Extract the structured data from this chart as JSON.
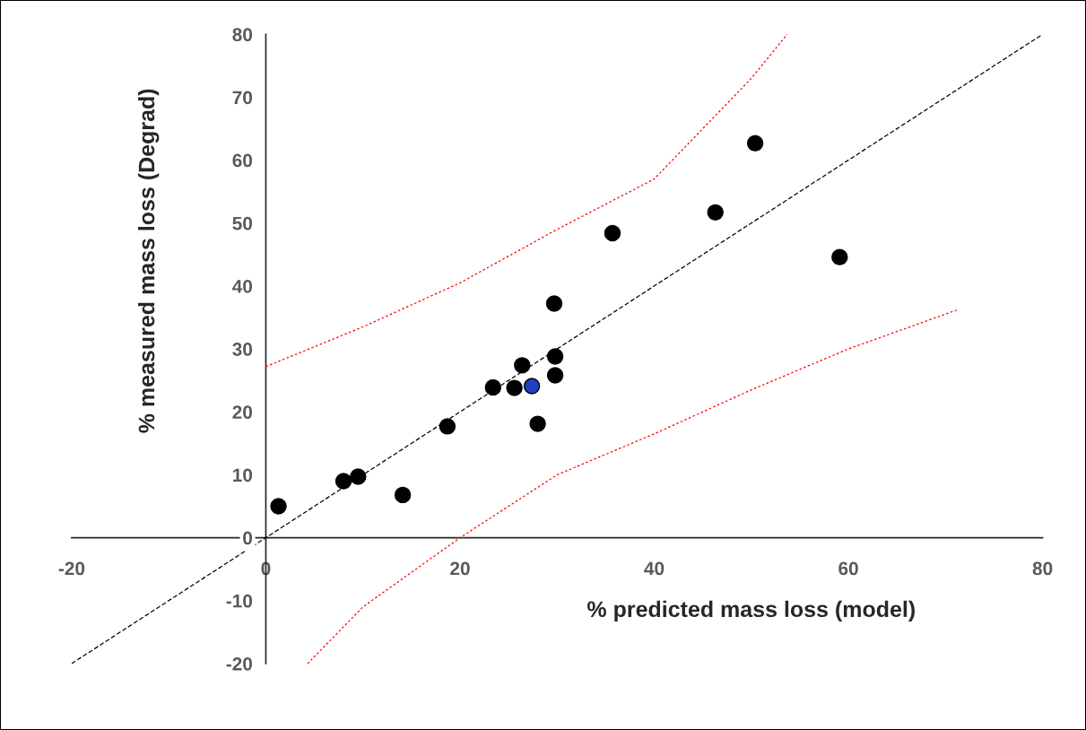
{
  "chart_data": {
    "type": "scatter",
    "xlabel": "% predicted mass loss (model)",
    "ylabel": "% measured mass loss (Degrad)",
    "xlim": [
      -20,
      80
    ],
    "ylim": [
      -20,
      80
    ],
    "xticks": [
      -20,
      0,
      20,
      40,
      60,
      80
    ],
    "yticks": [
      -20,
      -10,
      0,
      10,
      20,
      30,
      40,
      50,
      60,
      70,
      80
    ],
    "series": [
      {
        "marker": "circle",
        "color": "#000000",
        "colors": [
          "#000000",
          "#000000",
          "#000000",
          "#000000",
          "#000000",
          "#000000",
          "#000000",
          "#000000",
          "#1f3fbf",
          "#000000",
          "#000000",
          "#000000",
          "#000000",
          "#000000",
          "#000000",
          "#000000",
          "#000000"
        ],
        "x": [
          1.3,
          8.0,
          9.5,
          14.1,
          18.7,
          23.4,
          25.6,
          26.4,
          27.4,
          28.0,
          29.8,
          29.8,
          29.7,
          35.7,
          46.3,
          50.4,
          59.1
        ],
        "values": [
          5.0,
          9.0,
          9.7,
          6.8,
          17.7,
          23.9,
          23.8,
          27.4,
          24.1,
          18.1,
          28.8,
          25.8,
          37.2,
          48.4,
          51.7,
          62.7,
          44.6
        ]
      },
      {
        "type": "line",
        "marker": "none",
        "line_style": "dashed",
        "color": "#000000",
        "x": [
          -20,
          80
        ],
        "values": [
          -20,
          80
        ]
      },
      {
        "type": "line",
        "marker": "none",
        "line_style": "dotted",
        "color": "#ff0000",
        "x": [
          0,
          10,
          20,
          30,
          40,
          50,
          53.7
        ],
        "values": [
          27.2,
          33.5,
          40.5,
          49,
          57,
          73,
          80
        ]
      },
      {
        "type": "line",
        "marker": "none",
        "line_style": "dotted",
        "color": "#ff0000",
        "x": [
          4.3,
          10,
          20,
          30,
          40,
          50,
          60,
          71.2
        ],
        "values": [
          -20,
          -11,
          0,
          10,
          16.5,
          23.5,
          30,
          36.2
        ]
      }
    ]
  }
}
